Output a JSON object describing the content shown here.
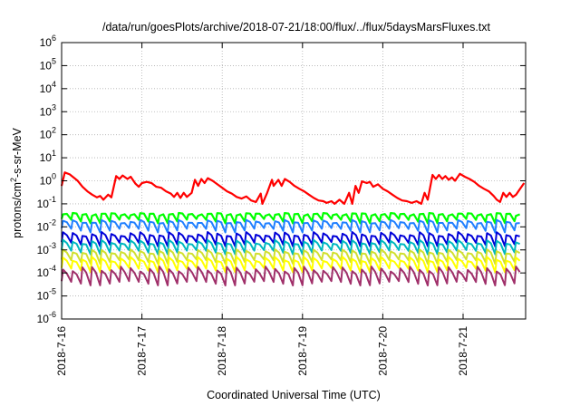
{
  "chart_data": {
    "type": "line",
    "title": "/data/run/goesPlots/archive/2018-07-21/18:00/flux/../flux/5daysMarsFluxes.txt",
    "xlabel": "Coordinated Universal Time (UTC)",
    "ylabel": {
      "main": "protons/cm",
      "sup": "2",
      "rest": "-s-sr-MeV"
    },
    "yscale": "log",
    "ylim_exp": [
      -6,
      6
    ],
    "xlim_days": [
      0,
      5.76
    ],
    "grid": true,
    "y_ticks": [
      {
        "base": "10",
        "exp": "-6"
      },
      {
        "base": "10",
        "exp": "-5"
      },
      {
        "base": "10",
        "exp": "-4"
      },
      {
        "base": "10",
        "exp": "-3"
      },
      {
        "base": "10",
        "exp": "-2"
      },
      {
        "base": "10",
        "exp": "-1"
      },
      {
        "base": "10",
        "exp": "0"
      },
      {
        "base": "10",
        "exp": "1"
      },
      {
        "base": "10",
        "exp": "2"
      },
      {
        "base": "10",
        "exp": "3"
      },
      {
        "base": "10",
        "exp": "4"
      },
      {
        "base": "10",
        "exp": "5"
      },
      {
        "base": "10",
        "exp": "6"
      }
    ],
    "x_ticks": [
      {
        "label": "2018-7-16",
        "day": 0
      },
      {
        "label": "2018-7-17",
        "day": 1
      },
      {
        "label": "2018-7-18",
        "day": 2
      },
      {
        "label": "2018-7-19",
        "day": 3
      },
      {
        "label": "2018-7-20",
        "day": 4
      },
      {
        "label": "2018-7-21",
        "day": 5
      }
    ],
    "series": [
      {
        "color": "#ff0000",
        "width": 2.2,
        "points": [
          [
            0.0,
            0.6
          ],
          [
            0.04,
            2.3
          ],
          [
            0.1,
            1.9
          ],
          [
            0.16,
            1.3
          ],
          [
            0.2,
            1.0
          ],
          [
            0.26,
            0.55
          ],
          [
            0.32,
            0.35
          ],
          [
            0.38,
            0.25
          ],
          [
            0.44,
            0.19
          ],
          [
            0.48,
            0.22
          ],
          [
            0.52,
            0.15
          ],
          [
            0.58,
            0.25
          ],
          [
            0.62,
            0.19
          ],
          [
            0.68,
            1.6
          ],
          [
            0.72,
            1.2
          ],
          [
            0.76,
            1.7
          ],
          [
            0.82,
            1.2
          ],
          [
            0.86,
            1.5
          ],
          [
            0.92,
            0.75
          ],
          [
            0.96,
            0.55
          ],
          [
            1.0,
            0.8
          ],
          [
            1.06,
            0.9
          ],
          [
            1.12,
            0.8
          ],
          [
            1.18,
            0.55
          ],
          [
            1.24,
            0.5
          ],
          [
            1.3,
            0.35
          ],
          [
            1.36,
            0.28
          ],
          [
            1.4,
            0.2
          ],
          [
            1.44,
            0.3
          ],
          [
            1.48,
            0.18
          ],
          [
            1.52,
            0.3
          ],
          [
            1.56,
            0.2
          ],
          [
            1.62,
            0.3
          ],
          [
            1.66,
            1.1
          ],
          [
            1.7,
            0.6
          ],
          [
            1.74,
            1.2
          ],
          [
            1.78,
            0.8
          ],
          [
            1.82,
            1.3
          ],
          [
            1.88,
            1.0
          ],
          [
            1.94,
            0.7
          ],
          [
            2.0,
            0.5
          ],
          [
            2.06,
            0.35
          ],
          [
            2.12,
            0.28
          ],
          [
            2.18,
            0.2
          ],
          [
            2.24,
            0.17
          ],
          [
            2.3,
            0.21
          ],
          [
            2.36,
            0.14
          ],
          [
            2.42,
            0.12
          ],
          [
            2.48,
            0.28
          ],
          [
            2.5,
            0.1
          ],
          [
            2.56,
            0.3
          ],
          [
            2.62,
            1.1
          ],
          [
            2.64,
            0.6
          ],
          [
            2.7,
            1.1
          ],
          [
            2.74,
            0.6
          ],
          [
            2.78,
            1.2
          ],
          [
            2.84,
            0.9
          ],
          [
            2.9,
            0.6
          ],
          [
            2.96,
            0.45
          ],
          [
            3.02,
            0.35
          ],
          [
            3.08,
            0.25
          ],
          [
            3.14,
            0.18
          ],
          [
            3.2,
            0.14
          ],
          [
            3.26,
            0.13
          ],
          [
            3.3,
            0.11
          ],
          [
            3.36,
            0.13
          ],
          [
            3.4,
            0.1
          ],
          [
            3.46,
            0.15
          ],
          [
            3.52,
            0.1
          ],
          [
            3.58,
            0.3
          ],
          [
            3.62,
            0.1
          ],
          [
            3.66,
            0.6
          ],
          [
            3.7,
            0.3
          ],
          [
            3.74,
            0.95
          ],
          [
            3.8,
            0.8
          ],
          [
            3.84,
            0.9
          ],
          [
            3.88,
            0.55
          ],
          [
            3.94,
            0.7
          ],
          [
            4.0,
            0.45
          ],
          [
            4.06,
            0.35
          ],
          [
            4.12,
            0.25
          ],
          [
            4.18,
            0.18
          ],
          [
            4.24,
            0.14
          ],
          [
            4.3,
            0.13
          ],
          [
            4.36,
            0.11
          ],
          [
            4.42,
            0.13
          ],
          [
            4.48,
            0.1
          ],
          [
            4.52,
            0.3
          ],
          [
            4.56,
            0.15
          ],
          [
            4.62,
            1.8
          ],
          [
            4.66,
            1.2
          ],
          [
            4.7,
            1.8
          ],
          [
            4.74,
            1.2
          ],
          [
            4.78,
            1.6
          ],
          [
            4.82,
            1.1
          ],
          [
            4.86,
            1.4
          ],
          [
            4.9,
            1.0
          ],
          [
            4.96,
            2.0
          ],
          [
            5.02,
            1.5
          ],
          [
            5.08,
            1.2
          ],
          [
            5.14,
            0.9
          ],
          [
            5.2,
            0.6
          ],
          [
            5.26,
            0.45
          ],
          [
            5.32,
            0.35
          ],
          [
            5.38,
            0.22
          ],
          [
            5.42,
            0.15
          ],
          [
            5.46,
            0.12
          ],
          [
            5.5,
            0.3
          ],
          [
            5.54,
            0.2
          ],
          [
            5.58,
            0.3
          ],
          [
            5.62,
            0.2
          ],
          [
            5.66,
            0.25
          ],
          [
            5.7,
            0.4
          ],
          [
            5.76,
            0.8
          ]
        ]
      },
      {
        "color": "#a0306a",
        "width": 2,
        "base": 4e-05,
        "amp": 0.00015,
        "phase": 0.35
      },
      {
        "color": "#ffff00",
        "width": 2,
        "base": 0.00015,
        "amp": 0.00035,
        "phase": 0.25
      },
      {
        "color": "#d0e030",
        "width": 2,
        "base": 0.00035,
        "amp": 0.0007,
        "phase": 0.2
      },
      {
        "color": "#00b8c0",
        "width": 2,
        "base": 0.0009,
        "amp": 0.0018,
        "phase": 0.15
      },
      {
        "color": "#0000d8",
        "width": 2,
        "base": 0.002,
        "amp": 0.004,
        "phase": 0.1
      },
      {
        "color": "#2080ff",
        "width": 2,
        "base": 0.008,
        "amp": 0.012,
        "phase": 0.05
      },
      {
        "color": "#00ff00",
        "width": 2.2,
        "base": 0.02,
        "amp": 0.02,
        "phase": 0.0
      }
    ]
  }
}
